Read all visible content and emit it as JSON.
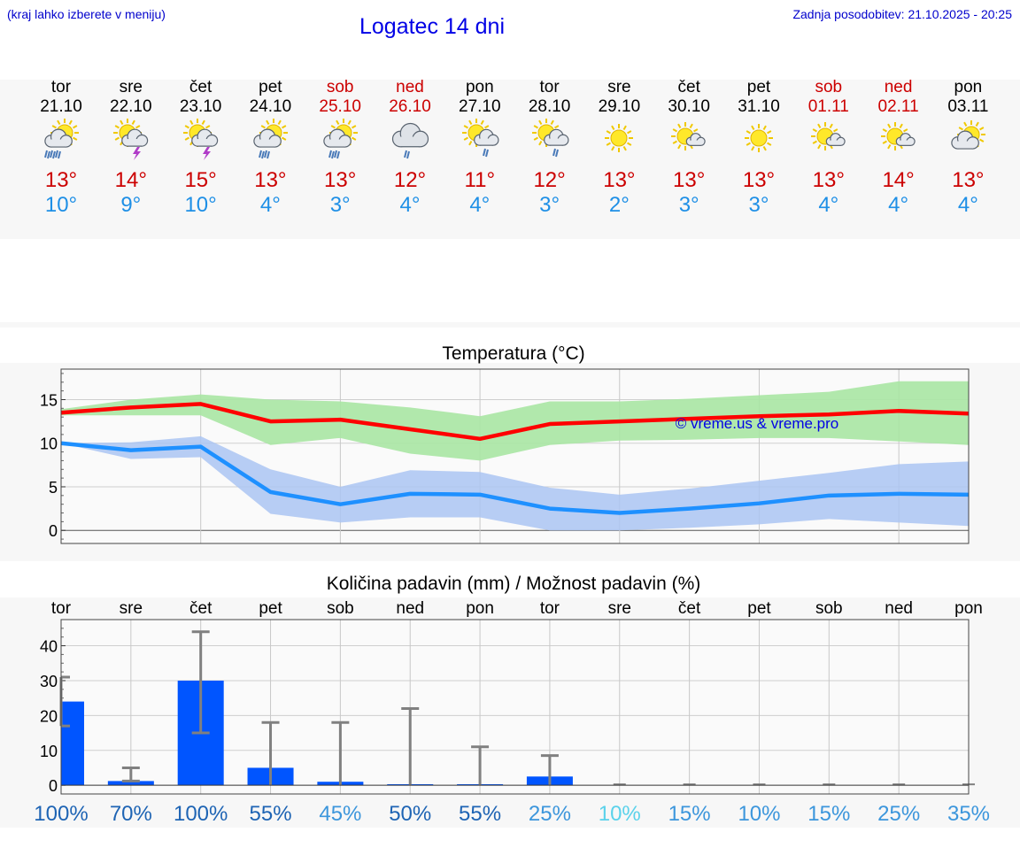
{
  "header": {
    "menu_hint": "(kraj lahko izberete v meniju)",
    "title": "Logatec 14 dni",
    "updated": "Zadnja posodobitev: 21.10.2025 - 20:25"
  },
  "days": [
    {
      "name": "tor",
      "date": "21.10",
      "weekend": false,
      "icon": "sun-cloud-heavy-rain-icon",
      "max": "13°",
      "min": "10°"
    },
    {
      "name": "sre",
      "date": "22.10",
      "weekend": false,
      "icon": "sun-cloud-thunderstorm-icon",
      "max": "14°",
      "min": "9°"
    },
    {
      "name": "čet",
      "date": "23.10",
      "weekend": false,
      "icon": "sun-cloud-thunderstorm-icon",
      "max": "15°",
      "min": "10°"
    },
    {
      "name": "pet",
      "date": "24.10",
      "weekend": false,
      "icon": "sun-cloud-rain-icon",
      "max": "13°",
      "min": "4°"
    },
    {
      "name": "sob",
      "date": "25.10",
      "weekend": true,
      "icon": "sun-cloud-rain-icon",
      "max": "13°",
      "min": "3°"
    },
    {
      "name": "ned",
      "date": "26.10",
      "weekend": true,
      "icon": "cloud-rain-icon",
      "max": "12°",
      "min": "4°"
    },
    {
      "name": "pon",
      "date": "27.10",
      "weekend": false,
      "icon": "sun-cloud-light-rain-icon",
      "max": "11°",
      "min": "4°"
    },
    {
      "name": "tor",
      "date": "28.10",
      "weekend": false,
      "icon": "sun-cloud-light-rain-icon",
      "max": "12°",
      "min": "3°"
    },
    {
      "name": "sre",
      "date": "29.10",
      "weekend": false,
      "icon": "sun-icon",
      "max": "13°",
      "min": "2°"
    },
    {
      "name": "čet",
      "date": "30.10",
      "weekend": false,
      "icon": "sun-small-cloud-icon",
      "max": "13°",
      "min": "3°"
    },
    {
      "name": "pet",
      "date": "31.10",
      "weekend": false,
      "icon": "sun-icon",
      "max": "13°",
      "min": "3°"
    },
    {
      "name": "sob",
      "date": "01.11",
      "weekend": true,
      "icon": "sun-small-cloud-icon",
      "max": "13°",
      "min": "4°"
    },
    {
      "name": "ned",
      "date": "02.11",
      "weekend": true,
      "icon": "sun-small-cloud-icon",
      "max": "14°",
      "min": "4°"
    },
    {
      "name": "pon",
      "date": "03.11",
      "weekend": false,
      "icon": "sun-cloud-icon",
      "max": "13°",
      "min": "4°"
    }
  ],
  "colors": {
    "max_temp": "#ff0000",
    "min_temp": "#1e90ff",
    "max_band": "#a8e6a3",
    "min_band": "#aac4f2",
    "precip_bar": "#0055ff",
    "error_bar": "#808080"
  },
  "chart_data": [
    {
      "type": "line",
      "title": "Temperatura (°C)",
      "watermark": "© vreme.us & vreme.pro",
      "ylim": [
        -1.5,
        18.5
      ],
      "yticks": [
        0,
        5,
        10,
        15
      ],
      "x": [
        0,
        1,
        2,
        3,
        4,
        5,
        6,
        7,
        8,
        9,
        10,
        11,
        12,
        13
      ],
      "series": [
        {
          "name": "max",
          "values": [
            13.5,
            14.1,
            14.5,
            12.5,
            12.7,
            11.6,
            10.5,
            12.2,
            12.5,
            12.8,
            13.1,
            13.3,
            13.7,
            13.4
          ],
          "band_low": [
            13.2,
            13.2,
            13.2,
            9.8,
            10.6,
            8.8,
            8.0,
            9.8,
            10.3,
            10.4,
            10.6,
            10.6,
            10.2,
            9.8
          ],
          "band_high": [
            13.9,
            15.0,
            15.6,
            15.0,
            14.8,
            14.1,
            13.1,
            14.8,
            14.8,
            15.1,
            15.5,
            15.9,
            17.1,
            17.1
          ]
        },
        {
          "name": "min",
          "values": [
            10.0,
            9.2,
            9.6,
            4.4,
            3.0,
            4.2,
            4.1,
            2.5,
            2.0,
            2.5,
            3.1,
            4.0,
            4.2,
            4.1
          ],
          "band_low": [
            10.0,
            8.2,
            8.4,
            1.9,
            0.9,
            1.5,
            1.5,
            0.0,
            0.0,
            0.3,
            0.7,
            1.3,
            0.9,
            0.5
          ],
          "band_high": [
            10.0,
            10.1,
            10.8,
            7.0,
            5.0,
            6.9,
            6.7,
            4.9,
            4.1,
            4.8,
            5.7,
            6.6,
            7.6,
            7.9
          ]
        }
      ]
    },
    {
      "type": "bar",
      "title": "Količina padavin (mm) / Možnost padavin (%)",
      "categories": [
        "tor",
        "sre",
        "čet",
        "pet",
        "sob",
        "ned",
        "pon",
        "tor",
        "sre",
        "čet",
        "pet",
        "sob",
        "ned",
        "pon"
      ],
      "ylim": [
        -2.5,
        47.5
      ],
      "yticks": [
        0,
        10,
        20,
        30,
        40
      ],
      "values": [
        24,
        1.2,
        30,
        5,
        1,
        0.3,
        0.3,
        2.5,
        0,
        0,
        0,
        0,
        0,
        0
      ],
      "error_low": [
        17,
        1.2,
        15,
        0,
        0,
        0,
        0,
        0,
        0,
        0,
        0,
        0,
        0,
        0
      ],
      "error_high": [
        31,
        5,
        44,
        18,
        18,
        22,
        11,
        8.5,
        0,
        0,
        0,
        0,
        0,
        0
      ],
      "probability": [
        "100%",
        "70%",
        "100%",
        "55%",
        "45%",
        "50%",
        "55%",
        "25%",
        "10%",
        "15%",
        "10%",
        "15%",
        "25%",
        "35%"
      ],
      "probability_colors": [
        "#1e64b4",
        "#1e64b4",
        "#1e64b4",
        "#1e64b4",
        "#3c96dc",
        "#1e64b4",
        "#1e64b4",
        "#3c96dc",
        "#5ad2eb",
        "#3c96dc",
        "#3c96dc",
        "#3c96dc",
        "#3c96dc",
        "#3c96dc"
      ]
    }
  ]
}
